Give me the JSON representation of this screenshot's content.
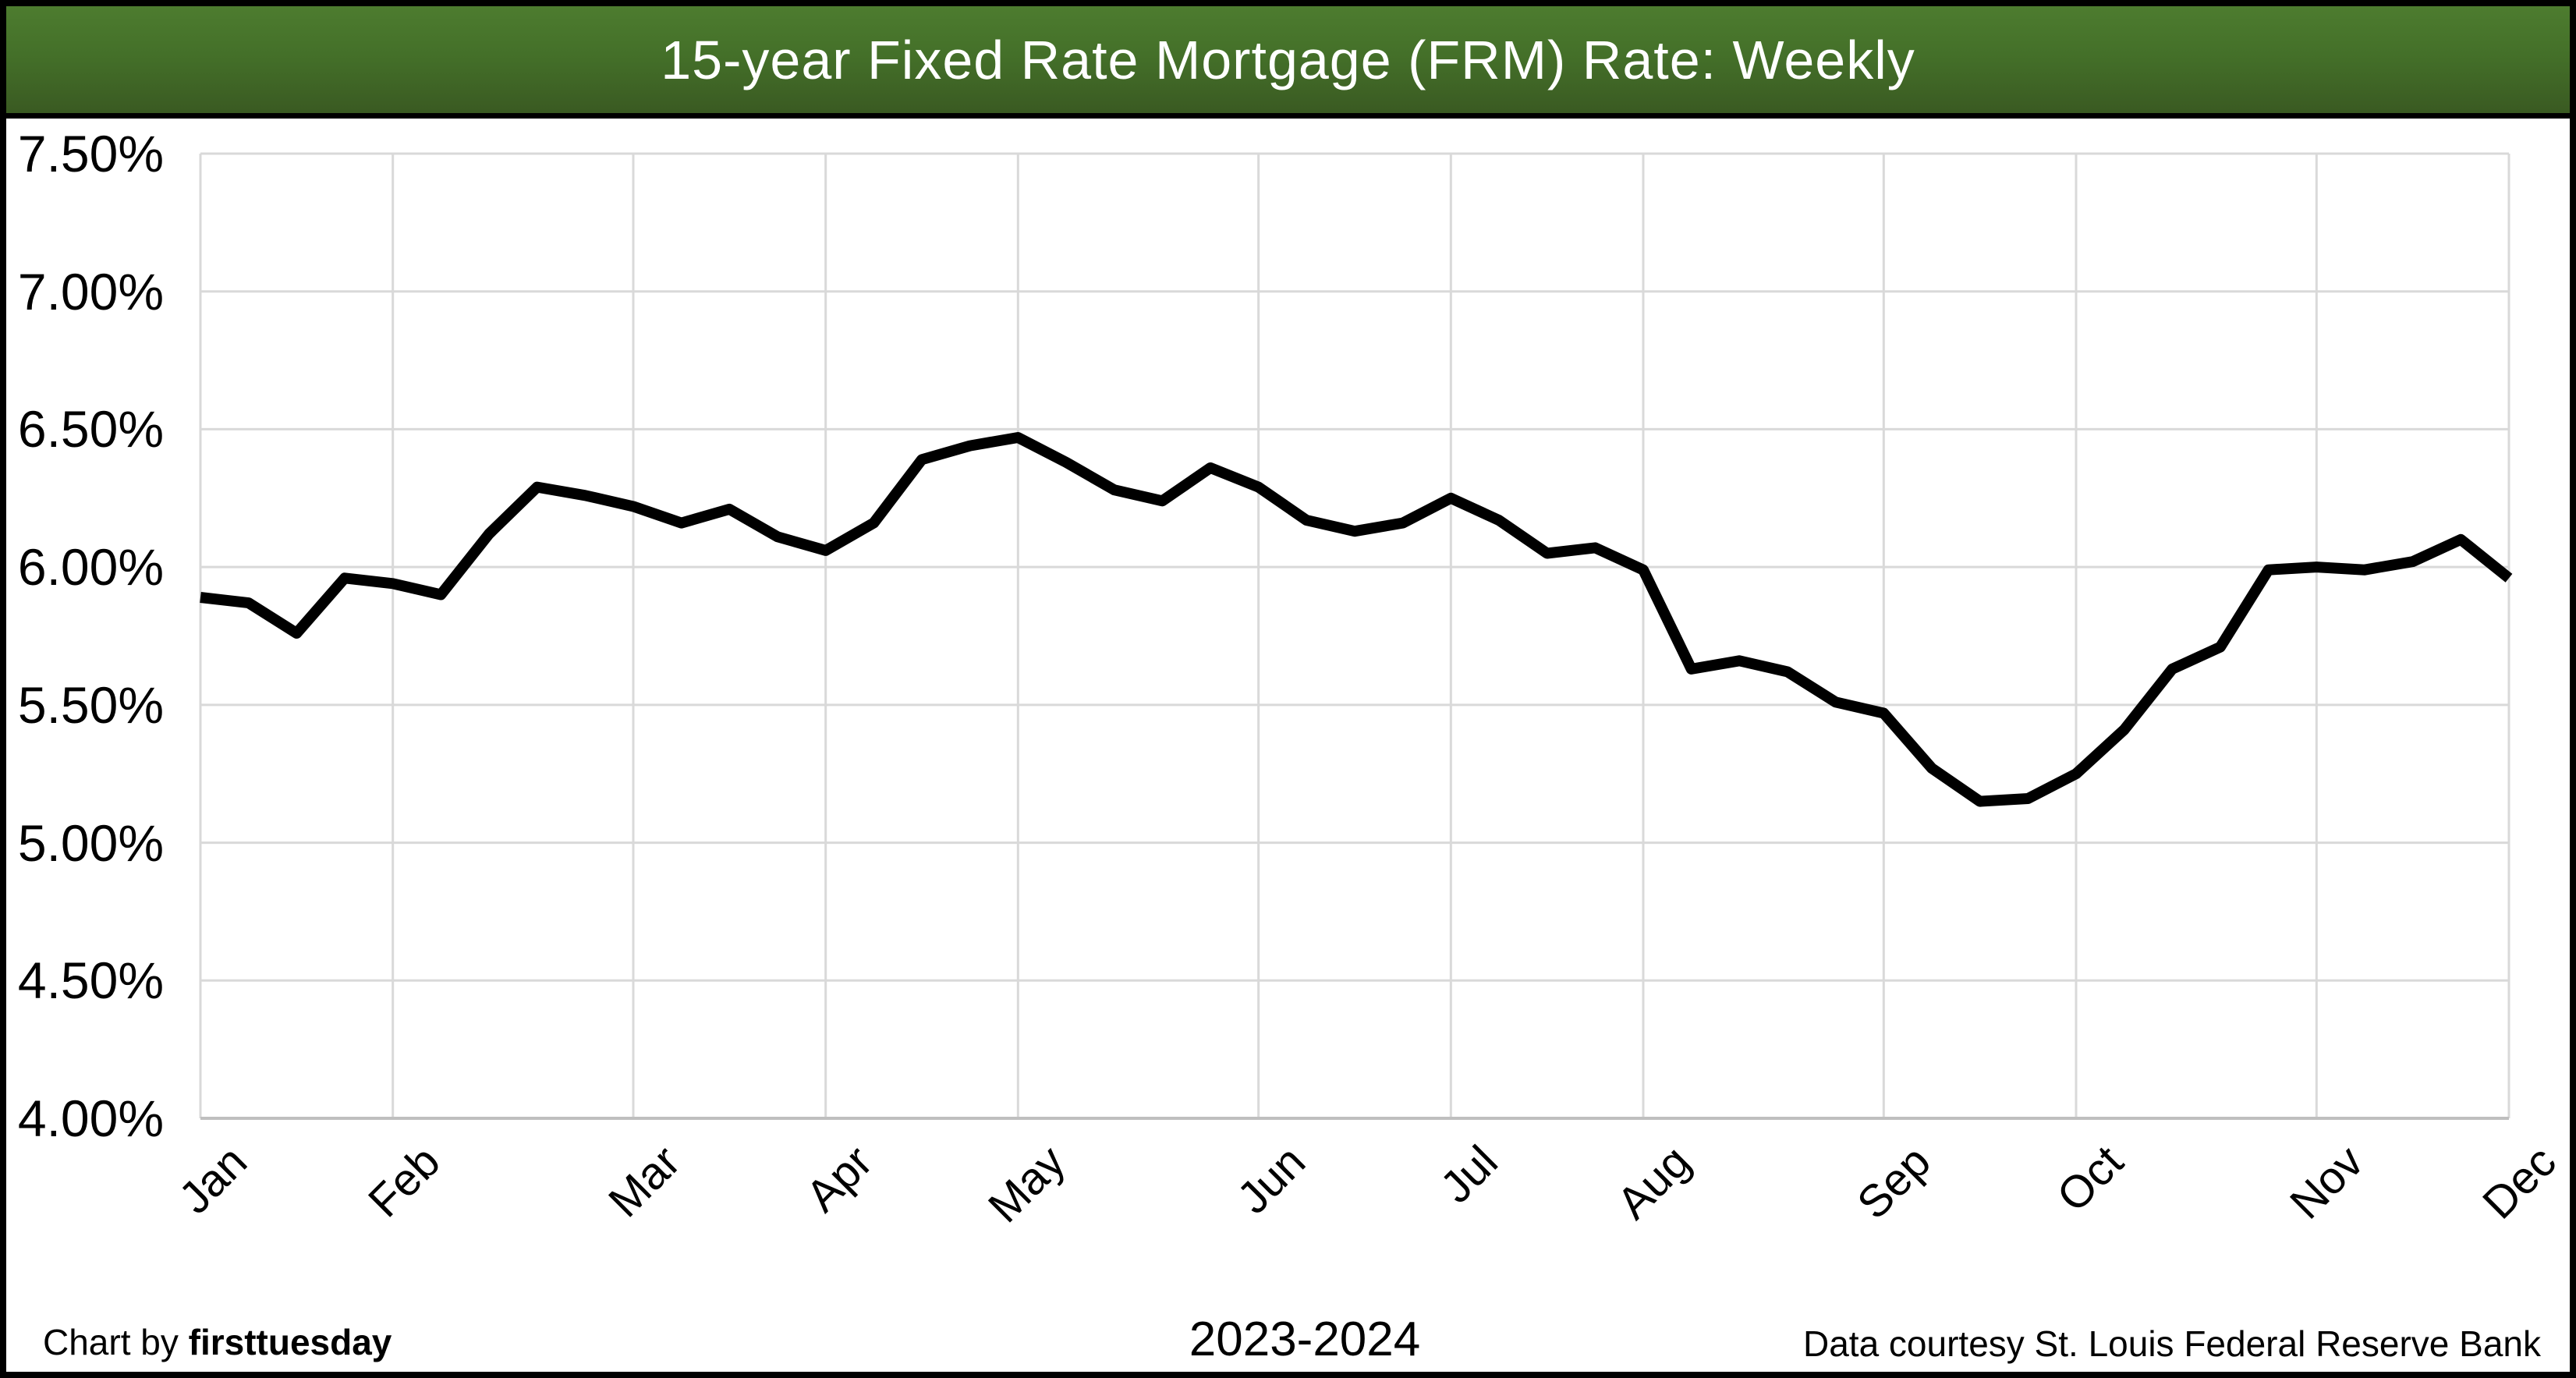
{
  "header": {
    "title": "15-year Fixed Rate Mortgage (FRM) Rate: Weekly"
  },
  "footer": {
    "credit_prefix": "Chart by ",
    "credit_brand": "firsttuesday",
    "period": "2023-2024",
    "source": "Data courtesy St. Louis Federal Reserve Bank"
  },
  "colors": {
    "header_gradient_top": "#4d7c2f",
    "header_gradient_bottom": "#3a5a22",
    "title_text": "#ffffff",
    "line": "#000000",
    "gridline": "#d9d9d9",
    "axis_line": "#bfbfbf",
    "frame": "#000000",
    "background": "#ffffff"
  },
  "chart_data": {
    "type": "line",
    "title": "15-year Fixed Rate Mortgage (FRM) Rate: Weekly",
    "xlabel": "2023-2024",
    "ylabel": "",
    "x_unit": "week",
    "x_tick_labels": [
      "Jan",
      "Feb",
      "Mar",
      "Apr",
      "May",
      "Jun",
      "Jul",
      "Aug",
      "Sep",
      "Oct",
      "Nov",
      "Dec"
    ],
    "y_tick_labels": [
      "7.50%",
      "7.00%",
      "6.50%",
      "6.00%",
      "5.50%",
      "5.00%",
      "4.50%",
      "4.00%"
    ],
    "ylim": [
      4.0,
      7.5
    ],
    "y_step": 0.5,
    "grid": true,
    "legend": false,
    "month_start_week_indices": [
      0,
      4,
      9,
      13,
      17,
      22,
      26,
      30,
      35,
      39,
      44,
      48
    ],
    "series": [
      {
        "name": "15-year FRM rate, weekly (%)",
        "values": [
          5.89,
          5.87,
          5.76,
          5.96,
          5.94,
          5.9,
          6.12,
          6.29,
          6.26,
          6.22,
          6.16,
          6.21,
          6.11,
          6.06,
          6.16,
          6.39,
          6.44,
          6.47,
          6.38,
          6.28,
          6.24,
          6.36,
          6.29,
          6.17,
          6.13,
          6.16,
          6.25,
          6.17,
          6.05,
          6.07,
          5.99,
          5.63,
          5.66,
          5.62,
          5.51,
          5.47,
          5.27,
          5.15,
          5.16,
          5.25,
          5.41,
          5.63,
          5.71,
          5.99,
          6.0,
          5.99,
          6.02,
          6.1,
          5.96
        ]
      }
    ]
  }
}
